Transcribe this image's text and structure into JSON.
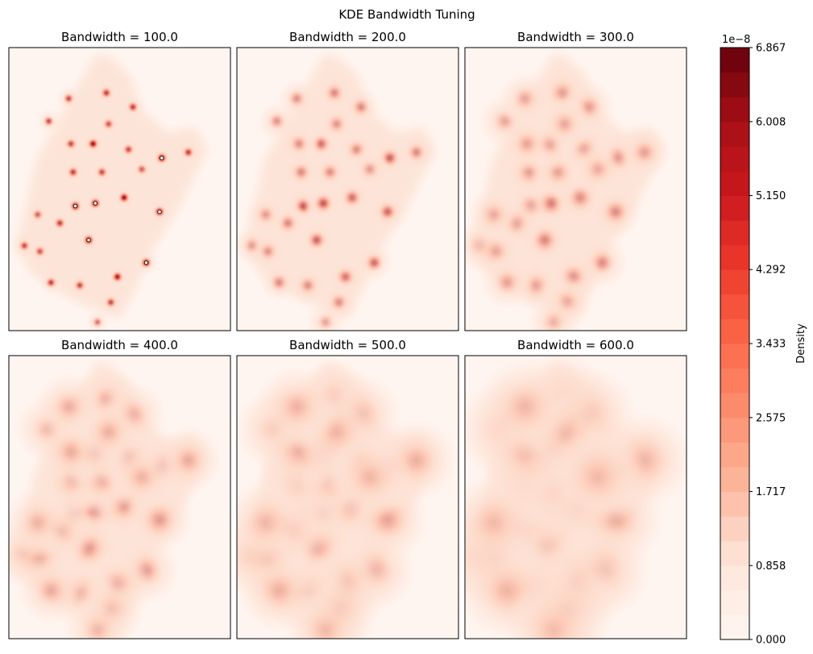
{
  "figure": {
    "suptitle": "KDE Bandwidth Tuning"
  },
  "chart_data": {
    "type": "heatmap",
    "title": "KDE Bandwidth Tuning",
    "colormap": "Reds",
    "panels": [
      {
        "title": "Bandwidth = 100.0",
        "bandwidth": 100.0
      },
      {
        "title": "Bandwidth = 200.0",
        "bandwidth": 200.0
      },
      {
        "title": "Bandwidth = 300.0",
        "bandwidth": 300.0
      },
      {
        "title": "Bandwidth = 400.0",
        "bandwidth": 400.0
      },
      {
        "title": "Bandwidth = 500.0",
        "bandwidth": 500.0
      },
      {
        "title": "Bandwidth = 600.0",
        "bandwidth": 600.0
      }
    ],
    "colorbar": {
      "label": "Density",
      "offset_text": "1e−8",
      "ticks": [
        "0.000",
        "0.858",
        "1.717",
        "2.575",
        "3.433",
        "4.292",
        "5.150",
        "6.008",
        "6.867"
      ],
      "range": [
        0.0,
        6.867
      ],
      "levels": 24,
      "colors": [
        "#fff5f0",
        "#fee7dc",
        "#fcbba1",
        "#fc9272",
        "#fb6a4a",
        "#ef3b2c",
        "#cb181d",
        "#a50f15",
        "#67000d"
      ]
    },
    "axes": {
      "xticks": "none",
      "yticks": "none"
    }
  }
}
